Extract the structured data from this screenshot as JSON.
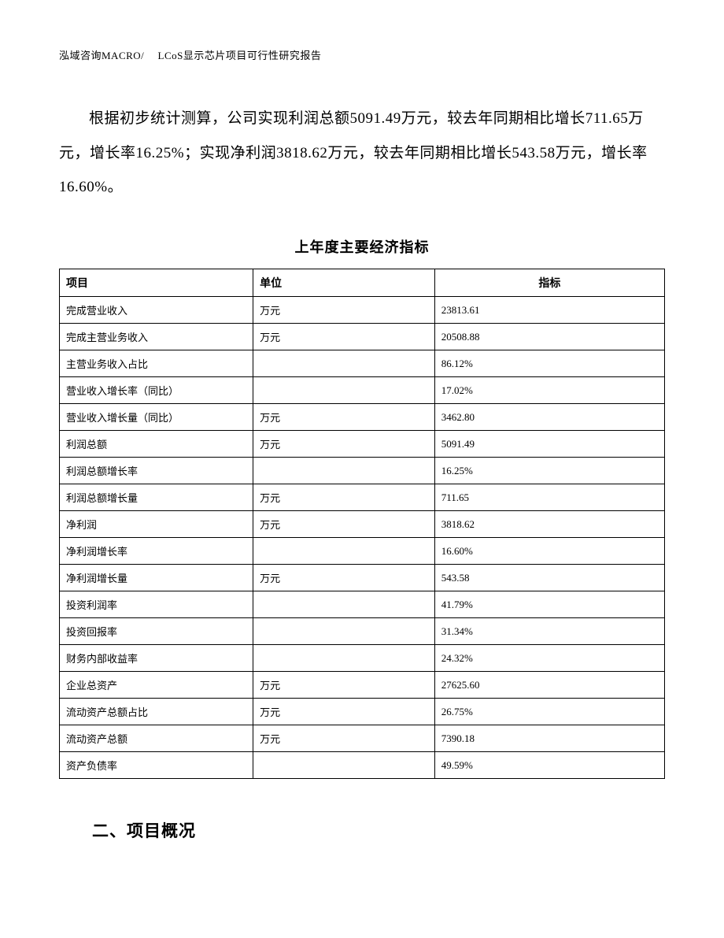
{
  "header": {
    "text": "泓域咨询MACRO/　 LCoS显示芯片项目可行性研究报告"
  },
  "paragraph": {
    "text": "根据初步统计测算，公司实现利润总额5091.49万元，较去年同期相比增长711.65万元，增长率16.25%；实现净利润3818.62万元，较去年同期相比增长543.58万元，增长率16.60%。"
  },
  "table": {
    "title": "上年度主要经济指标",
    "columns": [
      "项目",
      "单位",
      "指标"
    ],
    "rows": [
      [
        "完成营业收入",
        "万元",
        "23813.61"
      ],
      [
        "完成主营业务收入",
        "万元",
        "20508.88"
      ],
      [
        "主营业务收入占比",
        "",
        "86.12%"
      ],
      [
        "营业收入增长率（同比）",
        "",
        "17.02%"
      ],
      [
        "营业收入增长量（同比）",
        "万元",
        "3462.80"
      ],
      [
        "利润总额",
        "万元",
        "5091.49"
      ],
      [
        "利润总额增长率",
        "",
        "16.25%"
      ],
      [
        "利润总额增长量",
        "万元",
        "711.65"
      ],
      [
        "净利润",
        "万元",
        "3818.62"
      ],
      [
        "净利润增长率",
        "",
        "16.60%"
      ],
      [
        "净利润增长量",
        "万元",
        "543.58"
      ],
      [
        "投资利润率",
        "",
        "41.79%"
      ],
      [
        "投资回报率",
        "",
        "31.34%"
      ],
      [
        "财务内部收益率",
        "",
        "24.32%"
      ],
      [
        "企业总资产",
        "万元",
        "27625.60"
      ],
      [
        "流动资产总额占比",
        "万元",
        "26.75%"
      ],
      [
        "流动资产总额",
        "万元",
        "7390.18"
      ],
      [
        "资产负债率",
        "",
        "49.59%"
      ]
    ]
  },
  "section": {
    "heading": "二、项目概况"
  }
}
